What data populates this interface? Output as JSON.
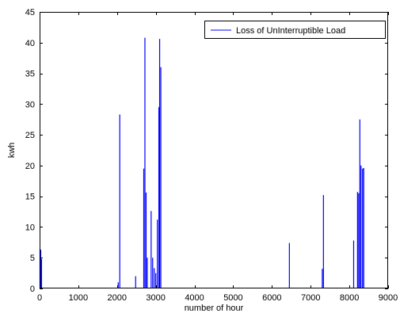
{
  "chart_data": {
    "type": "line",
    "title": "",
    "xlabel": "number of hour",
    "ylabel": "kwh",
    "xlim": [
      0,
      9000
    ],
    "ylim": [
      0,
      45
    ],
    "xticks": [
      "0",
      "1000",
      "2000",
      "3000",
      "4000",
      "5000",
      "6000",
      "7000",
      "8000",
      "9000"
    ],
    "yticks": [
      "0",
      "5",
      "10",
      "15",
      "20",
      "25",
      "30",
      "35",
      "40",
      "45"
    ],
    "grid": false,
    "legend_position": "top-right",
    "series": [
      {
        "name": "Loss of UnInterruptible Load",
        "color": "#0000ff",
        "spikes": [
          [
            10,
            6.4
          ],
          [
            30,
            6.3
          ],
          [
            50,
            4.8
          ],
          [
            2030,
            1.0
          ],
          [
            2070,
            28.3
          ],
          [
            2480,
            2.0
          ],
          [
            2690,
            19.5
          ],
          [
            2720,
            40.8
          ],
          [
            2750,
            15.6
          ],
          [
            2780,
            5.0
          ],
          [
            2880,
            12.6
          ],
          [
            2920,
            5.0
          ],
          [
            2960,
            3.3
          ],
          [
            3000,
            2.5
          ],
          [
            3040,
            11.2
          ],
          [
            3080,
            29.5
          ],
          [
            3100,
            40.6
          ],
          [
            3130,
            36.0
          ],
          [
            6450,
            7.4
          ],
          [
            7300,
            3.2
          ],
          [
            7330,
            15.2
          ],
          [
            8110,
            7.8
          ],
          [
            8210,
            15.7
          ],
          [
            8240,
            15.5
          ],
          [
            8270,
            27.5
          ],
          [
            8300,
            20.0
          ],
          [
            8340,
            19.5
          ],
          [
            8370,
            19.6
          ]
        ]
      }
    ]
  }
}
